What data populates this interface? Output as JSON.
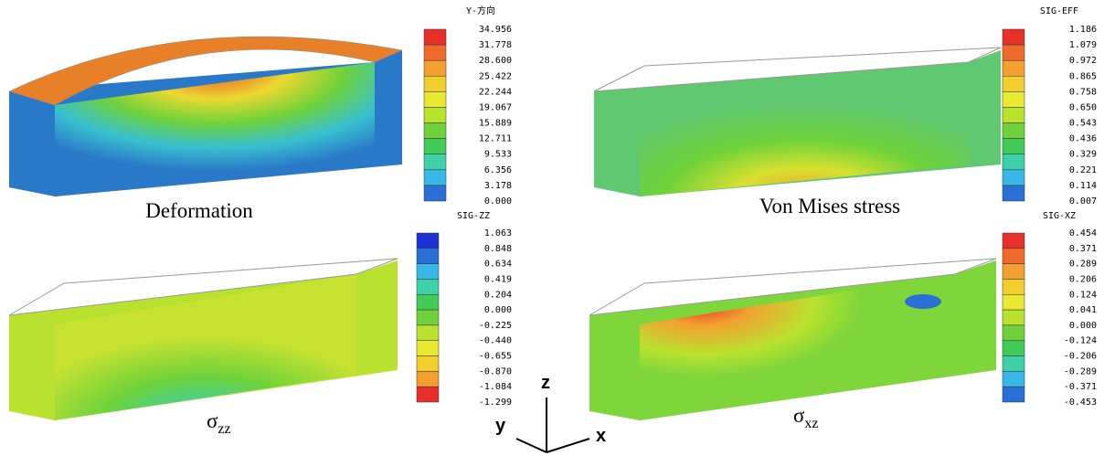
{
  "panels": [
    {
      "legend_title": "Y-方向",
      "legend_labels": [
        "34.956",
        "31.778",
        "28.600",
        "25.422",
        "22.244",
        "19.067",
        "15.889",
        "12.711",
        "9.533",
        "6.356",
        "3.178",
        "0.000"
      ],
      "colors": [
        "#e8302a",
        "#ef6a2b",
        "#f4a030",
        "#f2cf2f",
        "#e9ea2f",
        "#b9e22f",
        "#6fd23a",
        "#3fcb55",
        "#3ed0a8",
        "#38b8e6",
        "#2a6fd6"
      ],
      "caption": {
        "text": "Deformation"
      }
    },
    {
      "legend_title": "SIG-EFF",
      "legend_labels": [
        "1.186",
        "1.079",
        "0.972",
        "0.865",
        "0.758",
        "0.650",
        "0.543",
        "0.436",
        "0.329",
        "0.221",
        "0.114",
        "0.007"
      ],
      "colors": [
        "#e8302a",
        "#ef6a2b",
        "#f4a030",
        "#f2cf2f",
        "#e9ea2f",
        "#b9e22f",
        "#6fd23a",
        "#3fcb55",
        "#3ed0a8",
        "#38b8e6",
        "#2a6fd6"
      ],
      "caption": {
        "text": "Von Mises stress"
      }
    },
    {
      "legend_title": "SIG-ZZ",
      "legend_labels": [
        "1.063",
        "0.848",
        "0.634",
        "0.419",
        "0.204",
        "0.000",
        "-0.225",
        "-0.440",
        "-0.655",
        "-0.870",
        "-1.084",
        "-1.299"
      ],
      "colors": [
        "#1c2fd0",
        "#2a6fd6",
        "#38b8e6",
        "#3ed0a8",
        "#3fcb55",
        "#6fd23a",
        "#b9e22f",
        "#e9ea2f",
        "#f2cf2f",
        "#f4a030",
        "#e8302a"
      ],
      "caption": {
        "symbol": "σ",
        "subscript": "zz"
      }
    },
    {
      "legend_title": "SIG-XZ",
      "legend_labels": [
        "0.454",
        "0.371",
        "0.289",
        "0.206",
        "0.124",
        "0.041",
        "0.000",
        "-0.124",
        "-0.206",
        "-0.289",
        "-0.371",
        "-0.453"
      ],
      "colors": [
        "#e8302a",
        "#ef6a2b",
        "#f4a030",
        "#f2cf2f",
        "#e9ea2f",
        "#b9e22f",
        "#6fd23a",
        "#3fcb55",
        "#3ed0a8",
        "#38b8e6",
        "#2a6fd6"
      ],
      "caption": {
        "symbol": "σ",
        "subscript": "xz"
      }
    }
  ],
  "axes": {
    "z": "z",
    "y": "y",
    "x": "x"
  }
}
